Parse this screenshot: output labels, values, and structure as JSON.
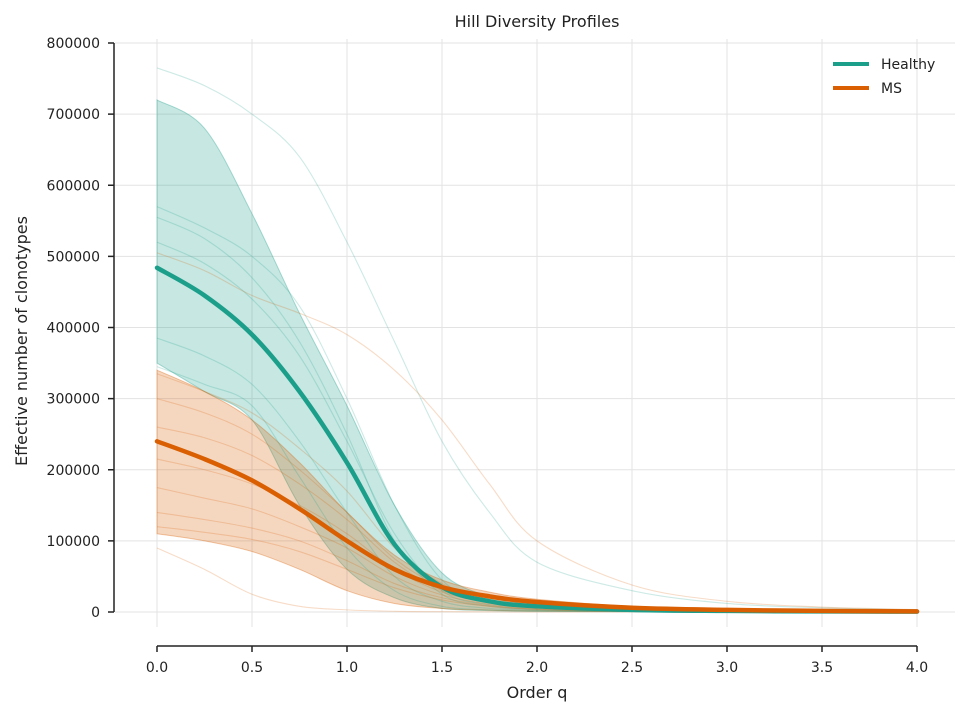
{
  "chart_data": {
    "type": "line",
    "title": "Hill Diversity Profiles",
    "xlabel": "Order q",
    "ylabel": "Effective number of clonotypes",
    "xlim": [
      0,
      4
    ],
    "ylim": [
      0,
      800000
    ],
    "x_ticks": [
      "0.0",
      "0.5",
      "1.0",
      "1.5",
      "2.0",
      "2.5",
      "3.0",
      "3.5",
      "4.0"
    ],
    "y_ticks": [
      "0",
      "100000",
      "200000",
      "300000",
      "400000",
      "500000",
      "600000",
      "700000",
      "800000"
    ],
    "grid": true,
    "legend_position": "top-right",
    "x": [
      0.0,
      0.25,
      0.5,
      0.75,
      1.0,
      1.25,
      1.5,
      1.75,
      2.0,
      2.5,
      3.0,
      3.5,
      4.0
    ],
    "series": [
      {
        "name": "Healthy",
        "color": "#1b9e8a",
        "mean": [
          484000,
          445000,
          390000,
          310000,
          210000,
          95000,
          35000,
          15000,
          8000,
          3000,
          1500,
          800,
          500
        ],
        "band_upper": [
          720000,
          680000,
          560000,
          420000,
          290000,
          150000,
          55000,
          22000,
          12000,
          5000,
          2500,
          1500,
          800
        ],
        "band_lower": [
          350000,
          310000,
          270000,
          150000,
          60000,
          20000,
          5000,
          2000,
          1000,
          500,
          200,
          100,
          50
        ],
        "samples": [
          [
            765000,
            740000,
            700000,
            640000,
            520000,
            380000,
            240000,
            140000,
            70000,
            30000,
            12000,
            6000,
            3000
          ],
          [
            570000,
            540000,
            500000,
            430000,
            300000,
            150000,
            45000,
            15000,
            7000,
            2500,
            1000,
            500,
            300
          ],
          [
            555000,
            525000,
            470000,
            380000,
            250000,
            100000,
            25000,
            8000,
            3000,
            1000,
            400,
            200,
            100
          ],
          [
            520000,
            490000,
            440000,
            360000,
            240000,
            110000,
            30000,
            10000,
            4000,
            1500,
            600,
            300,
            150
          ],
          [
            385000,
            360000,
            320000,
            240000,
            140000,
            50000,
            15000,
            5000,
            2000,
            800,
            300,
            150,
            80
          ],
          [
            345000,
            320000,
            290000,
            190000,
            90000,
            30000,
            8000,
            3000,
            1000,
            400,
            150,
            80,
            40
          ]
        ]
      },
      {
        "name": "MS",
        "color": "#d95f02",
        "mean": [
          240000,
          215000,
          185000,
          145000,
          100000,
          60000,
          35000,
          22000,
          14000,
          6000,
          3000,
          1500,
          800
        ],
        "band_upper": [
          340000,
          310000,
          270000,
          210000,
          140000,
          80000,
          45000,
          28000,
          18000,
          8000,
          4000,
          2000,
          1000
        ],
        "band_lower": [
          110000,
          100000,
          85000,
          60000,
          30000,
          12000,
          5000,
          2500,
          1500,
          700,
          300,
          150,
          80
        ],
        "samples": [
          [
            505000,
            480000,
            445000,
            420000,
            390000,
            340000,
            270000,
            180000,
            100000,
            38000,
            15000,
            7000,
            3500
          ],
          [
            335000,
            310000,
            280000,
            230000,
            170000,
            90000,
            40000,
            20000,
            10000,
            3000,
            1200,
            600,
            300
          ],
          [
            300000,
            280000,
            250000,
            200000,
            140000,
            75000,
            35000,
            16000,
            8000,
            2500,
            1000,
            500,
            250
          ],
          [
            260000,
            245000,
            220000,
            180000,
            130000,
            70000,
            30000,
            14000,
            7000,
            2000,
            800,
            400,
            200
          ],
          [
            215000,
            200000,
            180000,
            150000,
            110000,
            60000,
            28000,
            13000,
            6000,
            1800,
            700,
            350,
            180
          ],
          [
            175000,
            160000,
            145000,
            120000,
            90000,
            50000,
            24000,
            11000,
            5000,
            1500,
            600,
            300,
            150
          ],
          [
            140000,
            130000,
            118000,
            100000,
            72000,
            40000,
            20000,
            9000,
            4000,
            1200,
            500,
            250,
            120
          ],
          [
            120000,
            112000,
            102000,
            85000,
            60000,
            34000,
            17000,
            8000,
            3500,
            1000,
            400,
            200,
            100
          ],
          [
            90000,
            60000,
            25000,
            8000,
            3000,
            1000,
            400,
            200,
            100,
            50,
            20,
            10,
            5
          ]
        ]
      }
    ]
  }
}
